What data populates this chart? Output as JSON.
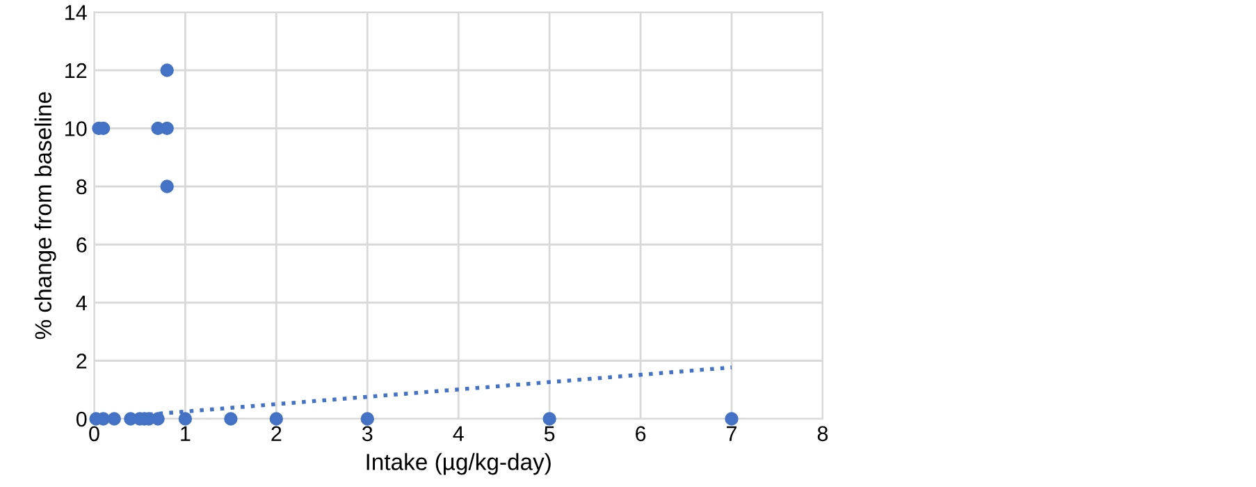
{
  "chart_data": {
    "type": "scatter",
    "xlabel": "Intake (µg/kg-day)",
    "ylabel": "% change from baseline",
    "xlim": [
      0,
      8
    ],
    "xticks": [
      0,
      1,
      2,
      3,
      4,
      5,
      6,
      7,
      8
    ],
    "ylim": [
      0,
      14
    ],
    "yticks": [
      0,
      2,
      4,
      6,
      8,
      10,
      12,
      14
    ],
    "grid": true,
    "marker": "circle",
    "series": [
      {
        "color": "#4472c4",
        "x": [
          0.02,
          0.1,
          0.22,
          0.4,
          0.5,
          0.55,
          0.6,
          0.7,
          1.0,
          1.5,
          2,
          3,
          5,
          7,
          0.05,
          0.1,
          0.7,
          0.8,
          0.8,
          0.8
        ],
        "values": [
          0,
          0,
          0,
          0,
          0,
          0,
          0,
          0,
          0,
          0,
          0,
          0,
          0,
          0,
          10,
          10,
          10,
          10,
          12,
          8
        ]
      },
      {
        "type": "line",
        "color": "#4472c4",
        "line_style": "dotted",
        "marker": "none",
        "x": [
          0.6,
          7
        ],
        "values": [
          0.15,
          1.77
        ]
      }
    ]
  }
}
